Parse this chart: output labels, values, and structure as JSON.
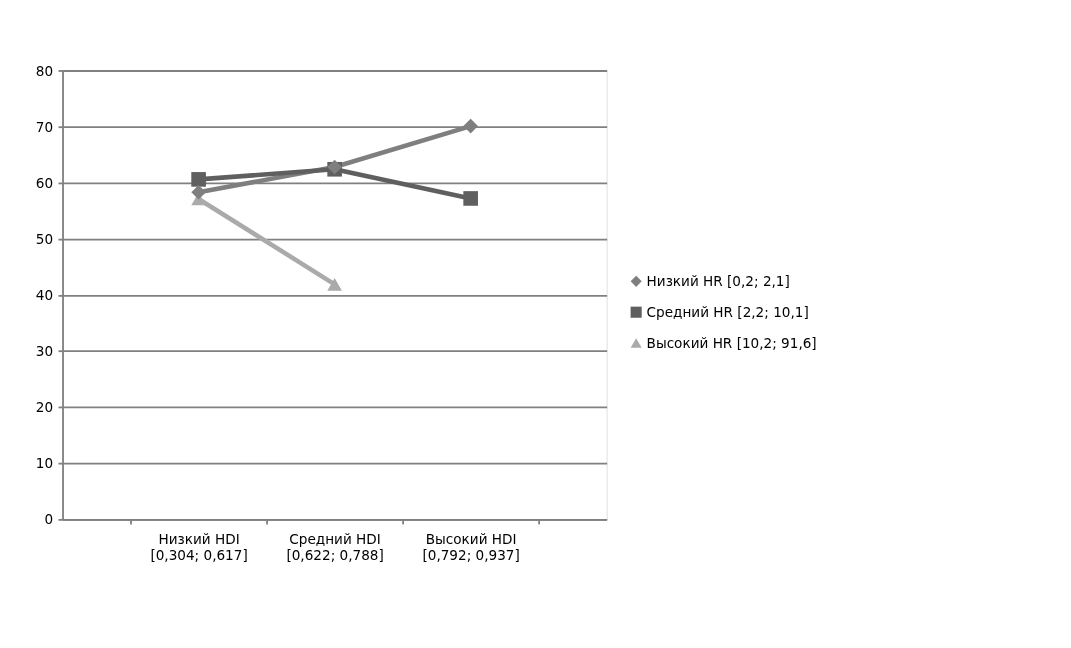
{
  "chart_data": {
    "type": "line",
    "categories": [
      "Низкий HDI\n[0,304; 0,617]",
      "Средний HDI\n[0,622; 0,788]",
      "Высокий HDI\n[0,792; 0,937]"
    ],
    "series": [
      {
        "name": "Низкий HR [0,2; 2,1]",
        "color": "#7f7f7f",
        "marker": "diamond",
        "values": [
          58.3,
          62.8,
          70.1
        ]
      },
      {
        "name": "Средний HR [2,2; 10,1]",
        "color": "#5f5f5f",
        "marker": "square",
        "values": [
          60.6,
          62.4,
          57.2
        ]
      },
      {
        "name": "Высокий HR [10,2; 91,6]",
        "color": "#aaaaaa",
        "marker": "triangle",
        "values": [
          57.1,
          41.9,
          null
        ]
      }
    ],
    "ylim": [
      0,
      80
    ],
    "yticks": [
      0,
      10,
      20,
      30,
      40,
      50,
      60,
      70,
      80
    ],
    "grid": "y",
    "legend": "right"
  }
}
